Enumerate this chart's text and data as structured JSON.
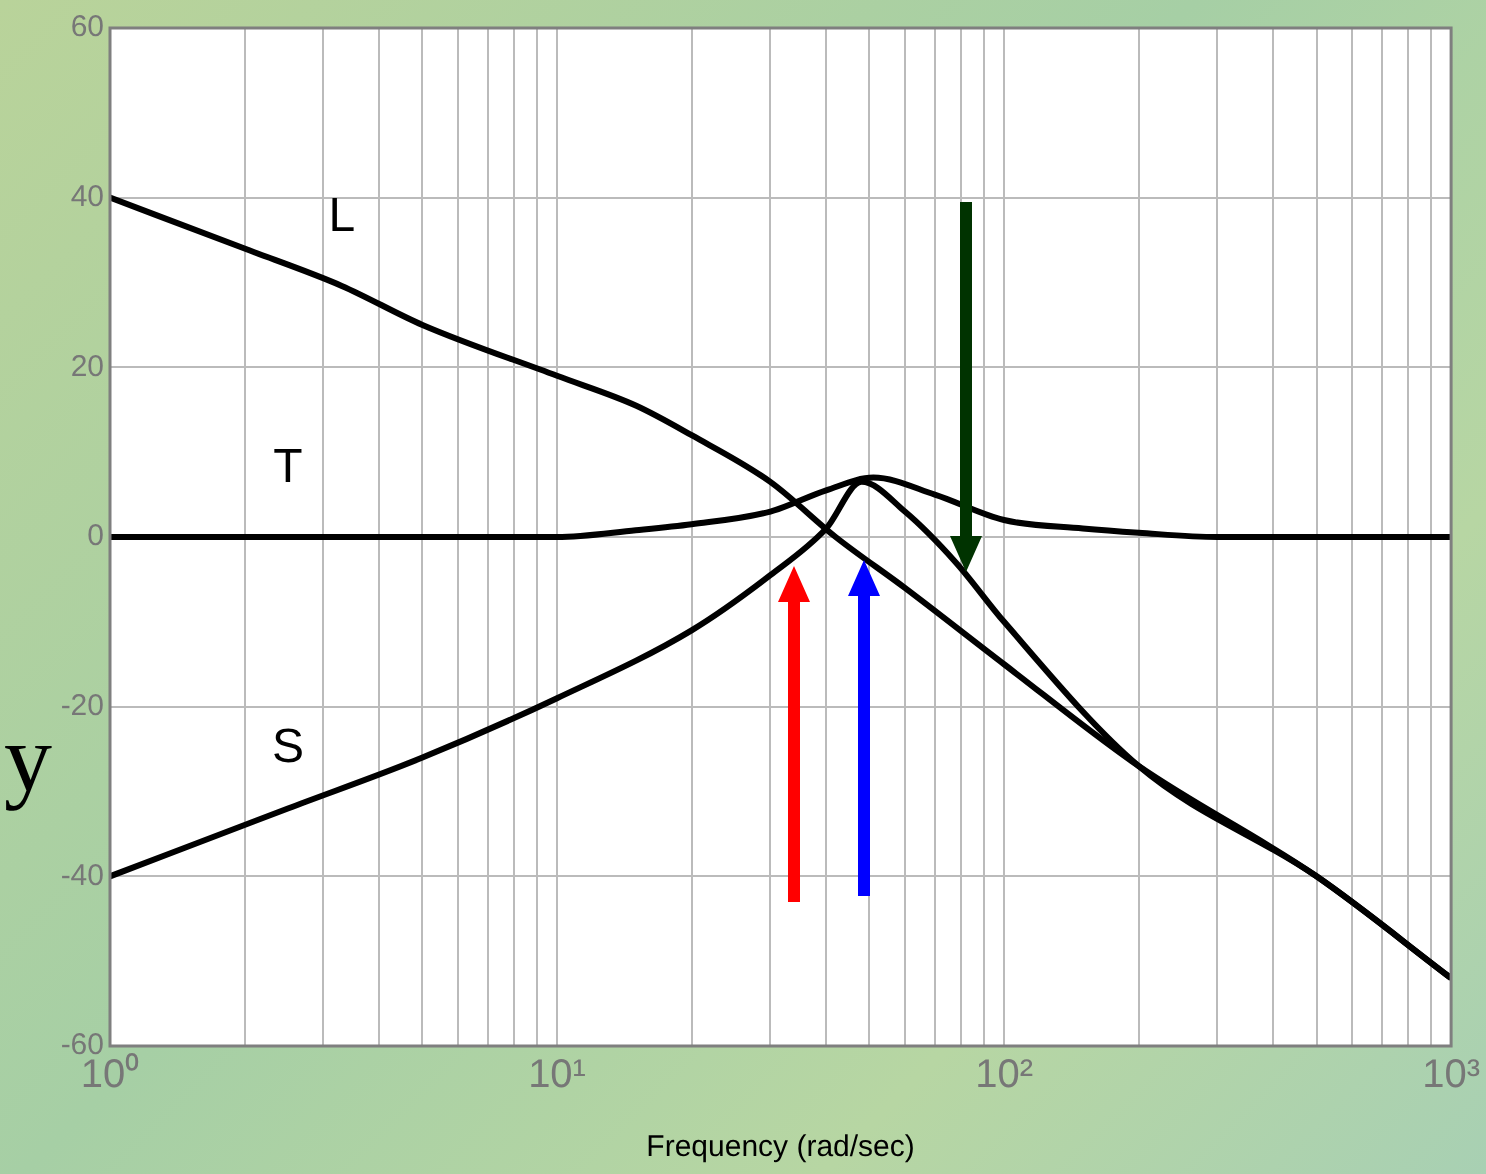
{
  "chart_data": {
    "type": "line",
    "xlabel": "Frequency (rad/sec)",
    "log": "x",
    "grid": true,
    "legend": false,
    "marker": "none",
    "line_style": "solid",
    "xlim": [
      1,
      1000
    ],
    "ylim": [
      -60,
      60
    ],
    "xticks": [
      {
        "value": 1,
        "label": "10⁰"
      },
      {
        "value": 2,
        "label": null
      },
      {
        "value": 3,
        "label": null
      },
      {
        "value": 4,
        "label": null
      },
      {
        "value": 5,
        "label": null
      },
      {
        "value": 6,
        "label": null
      },
      {
        "value": 7,
        "label": null
      },
      {
        "value": 8,
        "label": null
      },
      {
        "value": 9,
        "label": null
      },
      {
        "value": 10,
        "label": "10¹"
      },
      {
        "value": 20,
        "label": null
      },
      {
        "value": 30,
        "label": null
      },
      {
        "value": 40,
        "label": null
      },
      {
        "value": 50,
        "label": null
      },
      {
        "value": 60,
        "label": null
      },
      {
        "value": 70,
        "label": null
      },
      {
        "value": 80,
        "label": null
      },
      {
        "value": 90,
        "label": null
      },
      {
        "value": 100,
        "label": "10²"
      },
      {
        "value": 200,
        "label": null
      },
      {
        "value": 300,
        "label": null
      },
      {
        "value": 400,
        "label": null
      },
      {
        "value": 500,
        "label": null
      },
      {
        "value": 600,
        "label": null
      },
      {
        "value": 700,
        "label": null
      },
      {
        "value": 800,
        "label": null
      },
      {
        "value": 900,
        "label": null
      },
      {
        "value": 1000,
        "label": "10³"
      }
    ],
    "yticks": [
      -60,
      -40,
      -20,
      0,
      20,
      40,
      60
    ],
    "annotations": [
      "y"
    ],
    "series": [
      {
        "name": "L",
        "color": "#000000",
        "x": [
          1,
          2,
          3.3,
          5,
          10,
          15,
          20,
          30,
          42,
          60,
          100,
          200,
          500,
          1000
        ],
        "values": [
          40,
          34,
          29.6,
          25,
          19,
          15.5,
          12,
          6.5,
          0,
          -6,
          -15,
          -27,
          -40,
          -52
        ]
      },
      {
        "name": "T",
        "color": "#000000",
        "x": [
          1,
          2.5,
          5,
          10,
          15,
          20,
          30,
          40,
          51,
          70,
          100,
          150,
          200,
          300,
          1000
        ],
        "values": [
          0,
          0,
          0,
          0,
          0.8,
          1.5,
          3,
          5.5,
          7,
          5,
          2,
          1,
          0.5,
          0,
          0
        ]
      },
      {
        "name": "S",
        "color": "#000000",
        "x": [
          1,
          2.5,
          5,
          10,
          20,
          30,
          40,
          48,
          60,
          78,
          100,
          200,
          500,
          1000
        ],
        "values": [
          -40,
          -32,
          -26,
          -19,
          -11,
          -4.5,
          1,
          6.5,
          3,
          -3,
          -10,
          -27,
          -40,
          -52
        ]
      }
    ]
  }
}
